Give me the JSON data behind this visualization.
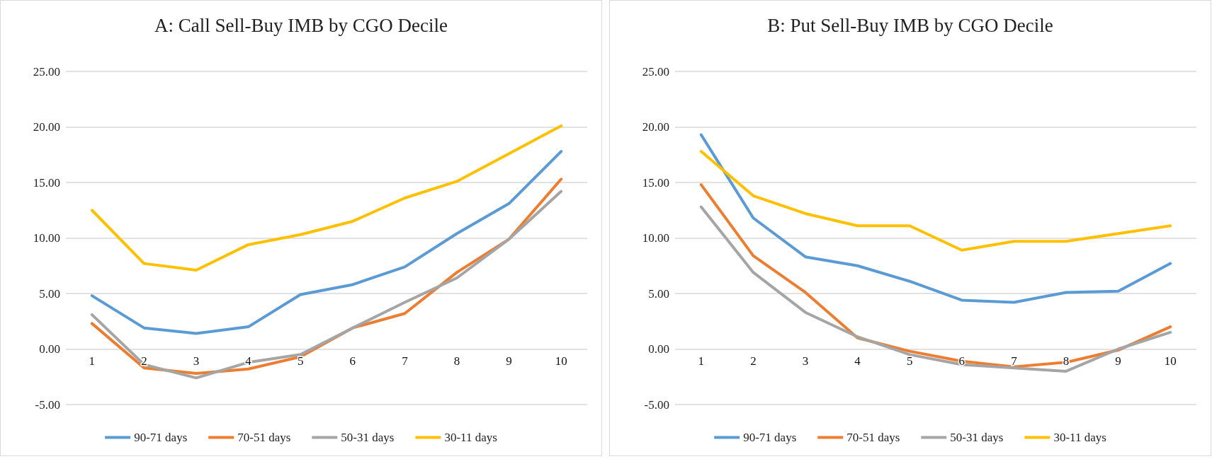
{
  "chart_data": [
    {
      "type": "line",
      "title": "A: Call Sell-Buy IMB by CGO Decile",
      "categories": [
        "1",
        "2",
        "3",
        "4",
        "5",
        "6",
        "7",
        "8",
        "9",
        "10"
      ],
      "series": [
        {
          "name": "90-71 days",
          "color": "#5b9bd5",
          "values": [
            4.8,
            1.9,
            1.4,
            2.0,
            4.9,
            5.8,
            7.4,
            10.4,
            13.1,
            17.8
          ]
        },
        {
          "name": "70-51 days",
          "color": "#ed7d31",
          "values": [
            2.3,
            -1.7,
            -2.2,
            -1.8,
            -0.7,
            1.9,
            3.2,
            6.9,
            9.9,
            15.3
          ]
        },
        {
          "name": "50-31 days",
          "color": "#a5a5a5",
          "values": [
            3.1,
            -1.4,
            -2.6,
            -1.2,
            -0.5,
            1.9,
            4.2,
            6.4,
            9.9,
            14.2
          ]
        },
        {
          "name": "30-11 days",
          "color": "#ffc000",
          "values": [
            12.5,
            7.7,
            7.1,
            9.4,
            10.3,
            11.5,
            13.6,
            15.1,
            17.6,
            20.1
          ]
        }
      ],
      "ylim": [
        -5,
        25
      ],
      "yticks": [
        {
          "value": -5,
          "label": "-5.00"
        },
        {
          "value": 0,
          "label": "0.00"
        },
        {
          "value": 5,
          "label": "5.00"
        },
        {
          "value": 10,
          "label": "10.00"
        },
        {
          "value": 15,
          "label": "15.00"
        },
        {
          "value": 20,
          "label": "20.00"
        },
        {
          "value": 25,
          "label": "25.00"
        }
      ],
      "grid": "y",
      "legend": "bottom",
      "marker": "none",
      "line_style": "solid"
    },
    {
      "type": "line",
      "title": "B: Put Sell-Buy IMB by CGO Decile",
      "categories": [
        "1",
        "2",
        "3",
        "4",
        "5",
        "6",
        "7",
        "8",
        "9",
        "10"
      ],
      "series": [
        {
          "name": "90-71 days",
          "color": "#5b9bd5",
          "values": [
            19.3,
            11.8,
            8.3,
            7.5,
            6.1,
            4.4,
            4.2,
            5.1,
            5.2,
            7.7
          ]
        },
        {
          "name": "70-51 days",
          "color": "#ed7d31",
          "values": [
            14.8,
            8.4,
            5.1,
            1.0,
            -0.2,
            -1.1,
            -1.6,
            -1.2,
            -0.1,
            2.0
          ]
        },
        {
          "name": "50-31 days",
          "color": "#a5a5a5",
          "values": [
            12.8,
            6.9,
            3.3,
            1.1,
            -0.5,
            -1.4,
            -1.7,
            -2.0,
            0.0,
            1.5
          ]
        },
        {
          "name": "30-11 days",
          "color": "#ffc000",
          "values": [
            17.8,
            13.8,
            12.2,
            11.1,
            11.1,
            8.9,
            9.7,
            9.7,
            10.4,
            11.1
          ]
        }
      ],
      "ylim": [
        -5,
        25
      ],
      "yticks": [
        {
          "value": -5,
          "label": "-5.00"
        },
        {
          "value": 0,
          "label": "0.00"
        },
        {
          "value": 5,
          "label": "5.00"
        },
        {
          "value": 10,
          "label": "10.00"
        },
        {
          "value": 15,
          "label": "15.00"
        },
        {
          "value": 20,
          "label": "20.00"
        },
        {
          "value": 25,
          "label": "25.00"
        }
      ],
      "grid": "y",
      "legend": "bottom",
      "marker": "none",
      "line_style": "solid"
    }
  ]
}
